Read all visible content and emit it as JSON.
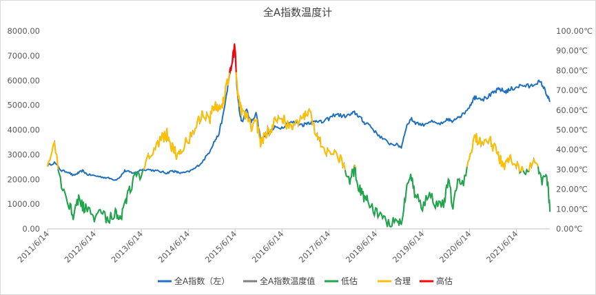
{
  "chart_data": {
    "type": "line",
    "title": "全A指数温度计",
    "x_tick_labels": [
      "2011/6/14",
      "2012/6/14",
      "2013/6/14",
      "2014/6/14",
      "2015/6/14",
      "2016/6/14",
      "2017/6/14",
      "2018/6/14",
      "2019/6/14",
      "2020/6/14",
      "2021/6/14"
    ],
    "x_range": [
      "2011/6/14",
      "2022/3/1"
    ],
    "y_left": {
      "ticks": [
        "0.00",
        "1000.00",
        "2000.00",
        "3000.00",
        "4000.00",
        "5000.00",
        "6000.00",
        "7000.00",
        "8000.00"
      ],
      "range": [
        0,
        8000
      ]
    },
    "y_right": {
      "ticks": [
        "0.00℃",
        "10.00℃",
        "20.00℃",
        "30.00℃",
        "40.00℃",
        "50.00℃",
        "60.00℃",
        "70.00℃",
        "80.00℃",
        "90.00℃",
        "100.00℃"
      ],
      "range": [
        0,
        100
      ]
    },
    "grid": false,
    "legend_position": "bottom",
    "legend": [
      "全A指数（左）",
      "全A指数温度值",
      "低估",
      "合理",
      "高估"
    ],
    "colors": {
      "index": "#1f6fbf",
      "temperature": "#808080",
      "low": "#1ea64b",
      "fair": "#ffc000",
      "high": "#ff0000",
      "axis": "#bfbfbf"
    },
    "band_thresholds_celsius": {
      "low_below": 30,
      "high_above": 80
    },
    "series": [
      {
        "name": "全A指数（左）",
        "axis": "left",
        "x": [
          2011.45,
          2011.6,
          2011.75,
          2011.9,
          2012.0,
          2012.1,
          2012.2,
          2012.3,
          2012.45,
          2012.6,
          2012.75,
          2012.9,
          2013.0,
          2013.1,
          2013.2,
          2013.3,
          2013.45,
          2013.6,
          2013.75,
          2013.9,
          2014.0,
          2014.1,
          2014.2,
          2014.3,
          2014.45,
          2014.6,
          2014.75,
          2014.9,
          2015.0,
          2015.1,
          2015.2,
          2015.3,
          2015.4,
          2015.45,
          2015.5,
          2015.55,
          2015.6,
          2015.7,
          2015.8,
          2015.9,
          2016.0,
          2016.1,
          2016.2,
          2016.3,
          2016.45,
          2016.6,
          2016.75,
          2016.9,
          2017.0,
          2017.1,
          2017.2,
          2017.3,
          2017.45,
          2017.6,
          2017.75,
          2017.9,
          2018.0,
          2018.1,
          2018.2,
          2018.3,
          2018.45,
          2018.6,
          2018.75,
          2018.9,
          2019.0,
          2019.1,
          2019.2,
          2019.3,
          2019.45,
          2019.6,
          2019.75,
          2019.9,
          2020.0,
          2020.1,
          2020.2,
          2020.3,
          2020.45,
          2020.55,
          2020.6,
          2020.75,
          2020.9,
          2021.0,
          2021.1,
          2021.2,
          2021.3,
          2021.45,
          2021.6,
          2021.75,
          2021.9,
          2022.0,
          2022.1,
          2022.17
        ],
        "values": [
          2550,
          2680,
          2350,
          2300,
          2150,
          2250,
          2350,
          2200,
          2150,
          2100,
          2050,
          1980,
          2100,
          2350,
          2300,
          2250,
          2400,
          2400,
          2350,
          2300,
          2250,
          2350,
          2300,
          2250,
          2300,
          2450,
          2700,
          3100,
          3500,
          3800,
          4600,
          5800,
          6900,
          7150,
          5500,
          4700,
          4300,
          4800,
          4300,
          4700,
          3600,
          3800,
          3900,
          4100,
          4100,
          4300,
          4300,
          4200,
          4300,
          4300,
          4400,
          4300,
          4450,
          4650,
          4550,
          4600,
          4700,
          4550,
          4300,
          4250,
          3900,
          3650,
          3450,
          3400,
          3300,
          4100,
          4450,
          4300,
          4200,
          4350,
          4250,
          4250,
          4450,
          4300,
          4550,
          4600,
          4950,
          5300,
          5350,
          5250,
          5400,
          5550,
          5650,
          5550,
          5600,
          5750,
          5800,
          5750,
          5950,
          5850,
          5450,
          5100
        ]
      },
      {
        "name": "全A指数温度值",
        "axis": "right",
        "x": [
          2011.45,
          2011.6,
          2011.75,
          2011.9,
          2012.0,
          2012.1,
          2012.2,
          2012.3,
          2012.45,
          2012.6,
          2012.75,
          2012.9,
          2013.0,
          2013.1,
          2013.2,
          2013.3,
          2013.45,
          2013.6,
          2013.75,
          2013.9,
          2014.0,
          2014.1,
          2014.2,
          2014.3,
          2014.45,
          2014.6,
          2014.75,
          2014.9,
          2015.0,
          2015.1,
          2015.2,
          2015.3,
          2015.4,
          2015.45,
          2015.5,
          2015.55,
          2015.6,
          2015.7,
          2015.8,
          2015.9,
          2016.0,
          2016.1,
          2016.2,
          2016.3,
          2016.45,
          2016.6,
          2016.75,
          2016.9,
          2017.0,
          2017.1,
          2017.2,
          2017.3,
          2017.45,
          2017.6,
          2017.75,
          2017.9,
          2018.0,
          2018.1,
          2018.2,
          2018.3,
          2018.45,
          2018.6,
          2018.75,
          2018.9,
          2019.0,
          2019.1,
          2019.2,
          2019.3,
          2019.45,
          2019.6,
          2019.75,
          2019.9,
          2020.0,
          2020.1,
          2020.2,
          2020.3,
          2020.45,
          2020.55,
          2020.6,
          2020.75,
          2020.9,
          2021.0,
          2021.1,
          2021.2,
          2021.3,
          2021.45,
          2021.6,
          2021.75,
          2021.9,
          2022.0,
          2022.1,
          2022.17
        ],
        "values": [
          30,
          42,
          22,
          14,
          7,
          15,
          12,
          9,
          6,
          8,
          5,
          9,
          4,
          13,
          20,
          25,
          28,
          38,
          40,
          46,
          48,
          42,
          38,
          40,
          45,
          50,
          58,
          55,
          62,
          62,
          64,
          75,
          86,
          92,
          70,
          62,
          60,
          56,
          52,
          55,
          44,
          48,
          50,
          55,
          56,
          52,
          54,
          56,
          60,
          55,
          45,
          44,
          38,
          40,
          32,
          25,
          30,
          20,
          16,
          14,
          8,
          4,
          2,
          4,
          2,
          20,
          28,
          16,
          12,
          18,
          12,
          13,
          24,
          12,
          26,
          22,
          37,
          46,
          46,
          42,
          44,
          40,
          35,
          32,
          35,
          32,
          28,
          32,
          33,
          24,
          26,
          11
        ]
      }
    ]
  }
}
